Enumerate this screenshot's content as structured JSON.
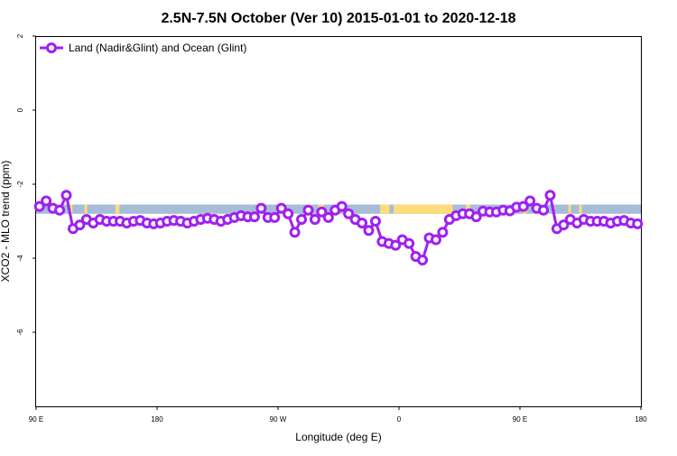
{
  "colors": {
    "series": "#a020f0",
    "ocean_band": "#a7bcd9",
    "land_band": "#fddc7a",
    "axis": "#000000",
    "background": "#ffffff"
  },
  "chart_data": {
    "type": "line",
    "title": "2.5N-7.5N October (Ver 10)   2015-01-01 to 2020-12-18",
    "xlabel": "Longitude (deg E)",
    "ylabel": "XCO2 - MLO trend (ppm)",
    "xlim": [
      90,
      540
    ],
    "ylim": [
      -8,
      2
    ],
    "x_ticks": [
      {
        "value": 90,
        "label": "90 E"
      },
      {
        "value": 180,
        "label": "180"
      },
      {
        "value": 270,
        "label": "90 W"
      },
      {
        "value": 360,
        "label": "0"
      },
      {
        "value": 450,
        "label": "90 E"
      },
      {
        "value": 540,
        "label": "180"
      }
    ],
    "y_ticks": [
      {
        "value": 2,
        "label": "2"
      },
      {
        "value": 0,
        "label": "0"
      },
      {
        "value": -2,
        "label": "-2"
      },
      {
        "value": -4,
        "label": "-4"
      },
      {
        "value": -6,
        "label": "-6"
      }
    ],
    "legend": {
      "position": "top-left",
      "entries": [
        "Land (Nadir&Glint) and Ocean (Glint)"
      ]
    },
    "grid": false,
    "surface_band": {
      "y_range": [
        -2.8,
        -2.55
      ],
      "land_segments": [
        [
          115,
          117
        ],
        [
          126,
          128
        ],
        [
          150,
          152
        ],
        [
          149,
          151
        ],
        [
          291,
          295
        ],
        [
          300,
          304
        ],
        [
          346,
          353
        ],
        [
          356,
          400
        ],
        [
          410,
          413
        ],
        [
          452,
          455
        ],
        [
          486,
          488
        ],
        [
          494,
          496
        ]
      ]
    },
    "series": [
      {
        "name": "Land (Nadir&Glint) and Ocean (Glint)",
        "x": [
          92.5,
          97.5,
          102.5,
          107.5,
          112.5,
          117.5,
          122.5,
          127.5,
          132.5,
          137.5,
          142.5,
          147.5,
          152.5,
          157.5,
          162.5,
          167.5,
          172.5,
          177.5,
          182.5,
          187.5,
          192.5,
          197.5,
          202.5,
          207.5,
          212.5,
          217.5,
          222.5,
          227.5,
          232.5,
          237.5,
          242.5,
          247.5,
          252.5,
          257.5,
          262.5,
          267.5,
          272.5,
          277.5,
          282.5,
          287.5,
          292.5,
          297.5,
          302.5,
          307.5,
          312.5,
          317.5,
          322.5,
          327.5,
          332.5,
          337.5,
          342.5,
          347.5,
          352.5,
          357.5,
          362.5,
          367.5,
          372.5,
          377.5,
          382.5,
          387.5,
          392.5,
          397.5,
          402.5,
          407.5,
          412.5,
          417.5,
          422.5,
          427.5,
          432.5,
          437.5,
          442.5,
          447.5,
          452.5,
          457.5,
          462.5,
          467.5,
          472.5,
          477.5,
          482.5,
          487.5,
          492.5,
          497.5,
          502.5,
          507.5,
          512.5,
          517.5,
          522.5,
          527.5,
          532.5,
          537.5
        ],
        "values": [
          -2.6,
          -2.45,
          -2.65,
          -2.7,
          -2.3,
          -3.2,
          -3.1,
          -2.95,
          -3.05,
          -2.95,
          -3.0,
          -3.0,
          -3.0,
          -3.05,
          -3.0,
          -2.98,
          -3.05,
          -3.07,
          -3.05,
          -3.0,
          -2.98,
          -3.0,
          -3.05,
          -3.0,
          -2.95,
          -2.92,
          -2.95,
          -3.0,
          -2.95,
          -2.9,
          -2.85,
          -2.88,
          -2.88,
          -2.65,
          -2.9,
          -2.9,
          -2.65,
          -2.8,
          -3.3,
          -2.95,
          -2.7,
          -2.95,
          -2.75,
          -2.9,
          -2.7,
          -2.6,
          -2.8,
          -2.95,
          -3.05,
          -3.25,
          -3.0,
          -3.55,
          -3.6,
          -3.65,
          -3.5,
          -3.6,
          -3.95,
          -4.05,
          -3.45,
          -3.5,
          -3.3,
          -2.95,
          -2.85,
          -2.8,
          -2.8,
          -2.88,
          -2.73,
          -2.75,
          -2.75,
          -2.7,
          -2.72,
          -2.62,
          -2.6,
          -2.45,
          -2.65,
          -2.7,
          -2.3,
          -3.2,
          -3.1,
          -2.95,
          -3.05,
          -2.95,
          -3.0,
          -3.0,
          -3.0,
          -3.05,
          -3.0,
          -2.98,
          -3.05,
          -3.07
        ]
      }
    ]
  }
}
